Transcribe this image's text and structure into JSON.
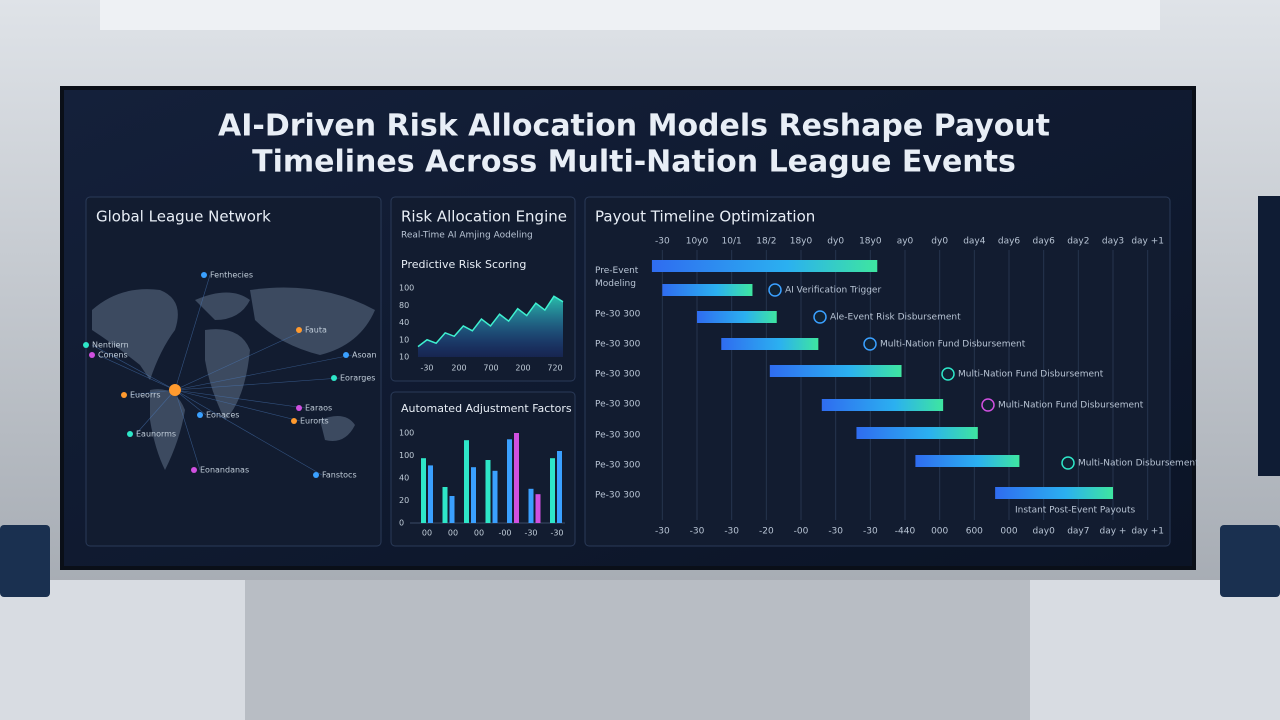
{
  "title": [
    "AI-Driven Risk Allocation Models Reshape Payout",
    "Timelines Across Multi-Nation League Events"
  ],
  "map": {
    "title": "Global League Network",
    "labels": [
      "Fenthecies",
      "Fauta",
      "Nentiiern",
      "Conens",
      "Asoan",
      "Eueorrs",
      "Eorarges",
      "Earaos",
      "Eonaces",
      "Eurorts",
      "Eaunorms",
      "Eonandanas",
      "Fanstocs"
    ]
  },
  "risk": {
    "title": "Risk Allocation Engine",
    "subtitle": "Real-Time AI Amjing Aodeling",
    "scoring": {
      "title": "Predictive Risk Scoring",
      "ylim": [
        0,
        100
      ],
      "y_labels": [
        "100",
        "80",
        "40",
        "10",
        "10"
      ],
      "x_labels": [
        "-30",
        "200",
        "700",
        "200",
        "720"
      ],
      "values": [
        15,
        25,
        20,
        35,
        30,
        45,
        38,
        55,
        45,
        62,
        52,
        70,
        60,
        78,
        68,
        88,
        80
      ]
    },
    "factors": {
      "title": "Automated Adjustment Factors",
      "ylim": [
        0,
        100
      ],
      "y_labels": [
        "100",
        "100",
        "40",
        "20",
        "0"
      ],
      "x_labels": [
        "00",
        "00",
        "00",
        "-00",
        "-30",
        "-30"
      ],
      "values": [
        72,
        64,
        40,
        30,
        92,
        62,
        70,
        58,
        93,
        100,
        38,
        32,
        72,
        80
      ],
      "colors": [
        "#2ee6c8",
        "#3aa0ff",
        "#2ee6c8",
        "#3aa0ff",
        "#2ee6c8",
        "#3aa0ff",
        "#2ee6c8",
        "#3aa0ff",
        "#3aa0ff",
        "#d050e0",
        "#3aa0ff",
        "#d050e0",
        "#2ee6c8",
        "#3aa0ff"
      ]
    }
  },
  "timeline": {
    "title": "Payout Timeline Optimization",
    "xlim": [
      0,
      15
    ],
    "top_labels": [
      "-30",
      "10y0",
      "10/1",
      "18/2",
      "18y0",
      "dy0",
      "18y0",
      "ay0",
      "dy0",
      "day4",
      "day6",
      "day6",
      "day2",
      "day3",
      "day +1"
    ],
    "bottom_labels": [
      "-30",
      "-30",
      "-30",
      "-20",
      "-00",
      "-30",
      "-30",
      "-440",
      "000",
      "600",
      "000",
      "day0",
      "day7",
      "day +",
      "day +1"
    ],
    "rows": [
      "Pre-Event Modeling",
      "Pe-30 300",
      "Pe-30 300",
      "Pe-30 300",
      "Pe-30 300",
      "Pe-30 300",
      "Pe-30 300",
      "Pe-30 300"
    ],
    "bars": [
      [
        0.2,
        6.7
      ],
      [
        0.5,
        3.1
      ],
      [
        1.5,
        3.8
      ],
      [
        2.2,
        5.0
      ],
      [
        3.6,
        7.4
      ],
      [
        5.1,
        8.6
      ],
      [
        6.1,
        9.6
      ],
      [
        7.8,
        10.8
      ],
      [
        10.1,
        13.5
      ]
    ],
    "callouts": [
      "AI Verification Trigger",
      "Ale-Event Risk Disbursement",
      "Multi-Nation Fund Disbursement",
      "Multi-Nation Fund Disbursement",
      "Multi-Nation Fund Disbursement",
      "Multi-Nation Disbursement",
      "Instant Post-Event Payouts"
    ]
  }
}
